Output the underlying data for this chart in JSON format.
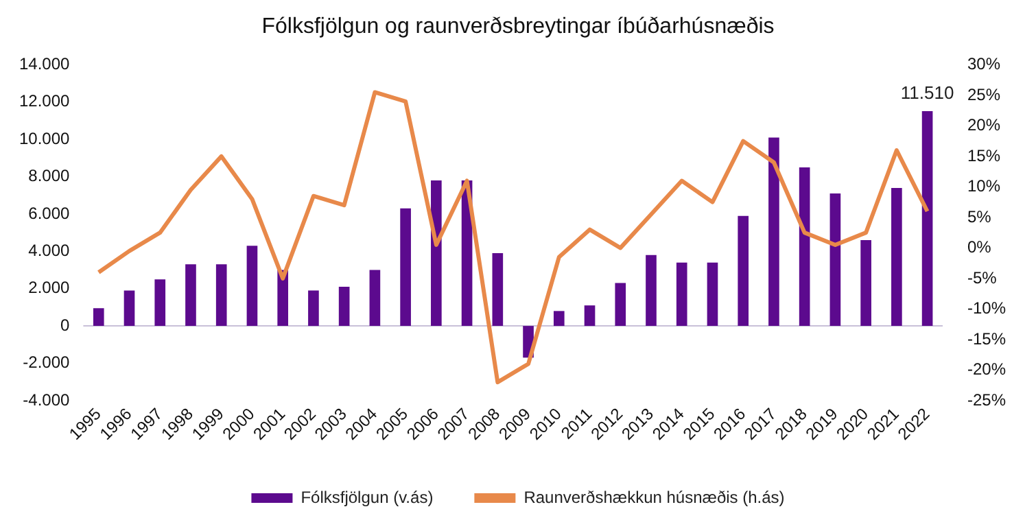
{
  "chart_data": {
    "type": "bar",
    "title": "Fólksfjölgun og raunverðsbreytingar íbúðarhúsnæðis",
    "categories": [
      "1995",
      "1996",
      "1997",
      "1998",
      "1999",
      "2000",
      "2001",
      "2002",
      "2003",
      "2004",
      "2005",
      "2006",
      "2007",
      "2008",
      "2009",
      "2010",
      "2011",
      "2012",
      "2013",
      "2014",
      "2015",
      "2016",
      "2017",
      "2018",
      "2019",
      "2020",
      "2021",
      "2022"
    ],
    "series": [
      {
        "name": "Fólksfjölgun (v.ás)",
        "color": "#5c0a8e",
        "values": [
          950,
          1900,
          2500,
          3300,
          3300,
          4300,
          3000,
          1900,
          2100,
          3000,
          6300,
          7800,
          7800,
          3900,
          -1700,
          800,
          1100,
          2300,
          3800,
          3400,
          3400,
          5900,
          10100,
          8500,
          7100,
          4600,
          7400,
          11510
        ],
        "value_labels": [
          null,
          null,
          null,
          null,
          null,
          null,
          null,
          null,
          null,
          null,
          null,
          null,
          null,
          null,
          null,
          null,
          null,
          null,
          null,
          null,
          null,
          null,
          null,
          null,
          null,
          null,
          null,
          "11.510"
        ]
      },
      {
        "name": "Raunverðshækkun húsnæðis (h.ás)",
        "type": "line",
        "axis": "y2",
        "color": "#e8894a",
        "values": [
          -4,
          -0.5,
          2.5,
          9.5,
          15,
          8,
          -5,
          8.5,
          7,
          25.5,
          24,
          0.5,
          11,
          -22,
          -19,
          -1.5,
          3,
          0,
          5.5,
          11,
          7.5,
          17.5,
          14,
          2.5,
          0.5,
          2.5,
          16,
          6
        ]
      }
    ],
    "ylim": [
      -4000,
      14000
    ],
    "yticks": [
      {
        "value": -4000,
        "label": "-4.000"
      },
      {
        "value": -2000,
        "label": "-2.000"
      },
      0,
      {
        "value": 2000,
        "label": "2.000"
      },
      {
        "value": 4000,
        "label": "4.000"
      },
      {
        "value": 6000,
        "label": "6.000"
      },
      {
        "value": 8000,
        "label": "8.000"
      },
      {
        "value": 10000,
        "label": "10.000"
      },
      {
        "value": 12000,
        "label": "12.000"
      },
      {
        "value": 14000,
        "label": "14.000"
      }
    ],
    "y2lim": [
      -25,
      30
    ],
    "y2ticks": [
      {
        "value": -25,
        "label": "-25%"
      },
      {
        "value": -20,
        "label": "-20%"
      },
      {
        "value": -15,
        "label": "-15%"
      },
      {
        "value": -10,
        "label": "-10%"
      },
      {
        "value": -5,
        "label": "-5%"
      },
      {
        "value": 0,
        "label": "0%"
      },
      {
        "value": 5,
        "label": "5%"
      },
      {
        "value": 10,
        "label": "10%"
      },
      {
        "value": 15,
        "label": "15%"
      },
      {
        "value": 20,
        "label": "20%"
      },
      {
        "value": 25,
        "label": "25%"
      },
      {
        "value": 30,
        "label": "30%"
      }
    ],
    "ref_lines": [
      {
        "axis": "y",
        "value": 0,
        "color": "#c8c0d8"
      }
    ],
    "grid": false,
    "legend": "bottom",
    "marker": "none",
    "line_style": "solid"
  }
}
